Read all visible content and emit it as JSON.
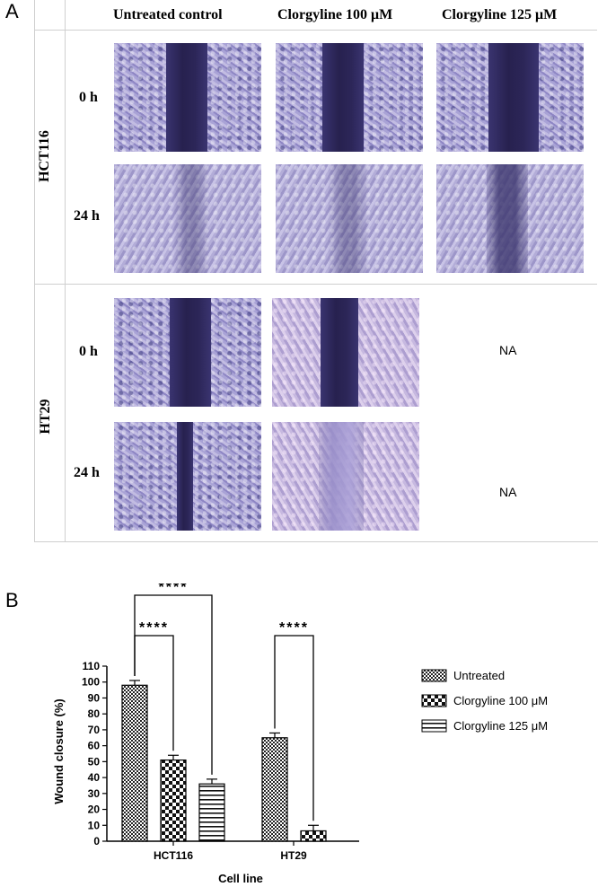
{
  "panel_a": {
    "label": "A",
    "columns": [
      "Untreated control",
      "Clorgyline 100 μM",
      "Clorgyline 125 μM"
    ],
    "rows": [
      {
        "cell_line": "HCT116",
        "timepoints": [
          "0 h",
          "24 h"
        ],
        "na": [
          "",
          ""
        ]
      },
      {
        "cell_line": "HT29",
        "timepoints": [
          "0 h",
          "24 h"
        ],
        "na": [
          "NA",
          "NA"
        ]
      }
    ]
  },
  "panel_b": {
    "label": "B"
  },
  "chart_data": {
    "type": "bar",
    "categories": [
      "HCT116",
      "HT29"
    ],
    "series": [
      {
        "name": "Untreated",
        "values": [
          98,
          65
        ],
        "errors": [
          3,
          3
        ],
        "pattern": "checker-dense"
      },
      {
        "name": "Clorgyline 100 μM",
        "values": [
          51,
          6.5
        ],
        "errors": [
          3,
          3.5
        ],
        "pattern": "checker-coarse"
      },
      {
        "name": "Clorgyline 125 μM",
        "values": [
          36,
          null
        ],
        "errors": [
          3,
          null
        ],
        "pattern": "horizontal-lines"
      }
    ],
    "ylabel": "Wound closure (%)",
    "xlabel": "Cell line",
    "ylim": [
      0,
      110
    ],
    "yticks": [
      "0",
      "10",
      "20",
      "30",
      "40",
      "50",
      "60",
      "70",
      "80",
      "90",
      "100",
      "110"
    ],
    "significance": [
      {
        "category": "HCT116",
        "from": "Untreated",
        "to": "Clorgyline 100 μM",
        "label": "****"
      },
      {
        "category": "HCT116",
        "from": "Untreated",
        "to": "Clorgyline 125 μM",
        "label": "****"
      },
      {
        "category": "HT29",
        "from": "Untreated",
        "to": "Clorgyline 100 μM",
        "label": "****"
      }
    ],
    "legend_position": "right",
    "grid": false
  }
}
